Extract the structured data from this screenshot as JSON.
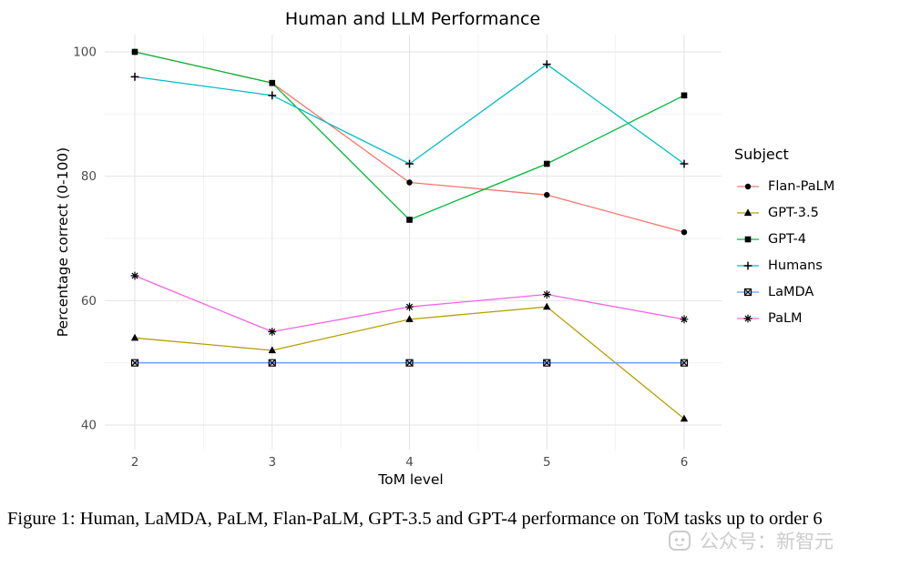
{
  "chart_data": {
    "type": "line",
    "title": "Human and LLM Performance",
    "xlabel": "ToM level",
    "ylabel": "Percentage correct (0-100)",
    "legend_title": "Subject",
    "legend_position": "right",
    "grid": true,
    "x": [
      2,
      3,
      4,
      5,
      6
    ],
    "x_ticks": [
      2,
      3,
      4,
      5,
      6
    ],
    "y_ticks": [
      40,
      60,
      80,
      100
    ],
    "ylim": [
      36,
      103
    ],
    "marker_color": "#000000",
    "series": [
      {
        "name": "Flan-PaLM",
        "color": "#F8766D",
        "marker": "circle",
        "values": [
          100,
          95,
          79,
          77,
          71
        ]
      },
      {
        "name": "GPT-3.5",
        "color": "#B79F00",
        "marker": "triangle",
        "values": [
          54,
          52,
          57,
          59,
          41
        ]
      },
      {
        "name": "GPT-4",
        "color": "#00BA38",
        "marker": "square",
        "values": [
          100,
          95,
          73,
          82,
          93
        ]
      },
      {
        "name": "Humans",
        "color": "#00BFC4",
        "marker": "plus",
        "values": [
          96,
          93,
          82,
          98,
          82
        ]
      },
      {
        "name": "LaMDA",
        "color": "#619CFF",
        "marker": "square-x",
        "values": [
          50,
          50,
          50,
          50,
          50
        ]
      },
      {
        "name": "PaLM",
        "color": "#F564E3",
        "marker": "asterisk",
        "values": [
          64,
          55,
          59,
          61,
          57
        ]
      }
    ]
  },
  "caption": {
    "text": "Figure 1: Human, LaMDA, PaLM, Flan-PaLM, GPT-3.5 and GPT-4 performance on ToM tasks up to order 6"
  },
  "watermark": {
    "text": "公众号：新智元"
  }
}
